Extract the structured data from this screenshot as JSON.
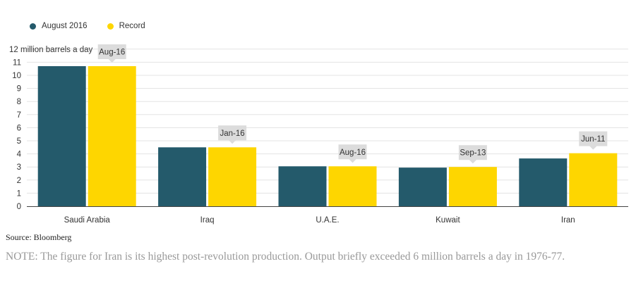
{
  "chart_data": {
    "type": "bar",
    "categories": [
      "Saudi Arabia",
      "Iraq",
      "U.A.E.",
      "Kuwait",
      "Iran"
    ],
    "series": [
      {
        "name": "August 2016",
        "color": "#245a6b",
        "values": [
          10.7,
          4.5,
          3.05,
          2.95,
          3.65
        ]
      },
      {
        "name": "Record",
        "color": "#fed600",
        "values": [
          10.7,
          4.5,
          3.05,
          3.0,
          4.05
        ]
      }
    ],
    "record_labels": [
      "Aug-16",
      "Jan-16",
      "Aug-16",
      "Sep-13",
      "Jun-11"
    ],
    "ylabel": "12 million barrels a day",
    "yticks": [
      0,
      1,
      2,
      3,
      4,
      5,
      6,
      7,
      8,
      9,
      10,
      11
    ],
    "ylim": [
      0,
      12
    ],
    "grid": true,
    "legend_position": "top-left"
  },
  "source": "Source: Bloomberg",
  "note": "NOTE: The figure for Iran is its highest post-revolution production. Output briefly exceeded 6 million barrels a day in 1976-77."
}
